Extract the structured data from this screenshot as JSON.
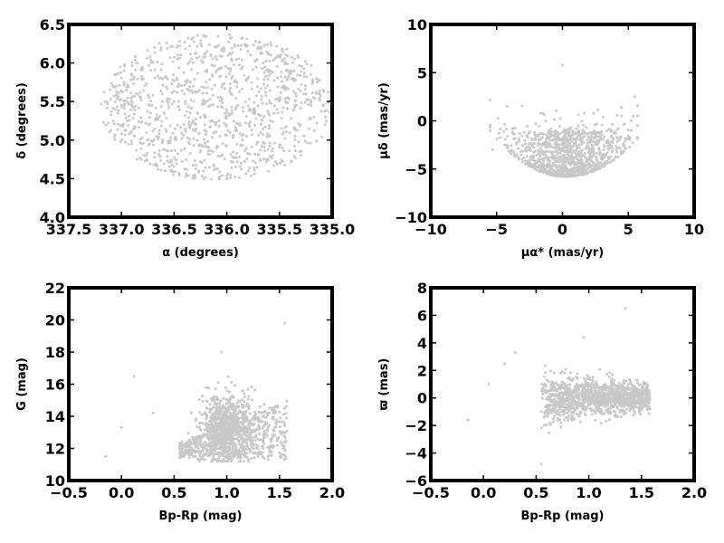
{
  "chart_data": [
    {
      "type": "scatter",
      "id": "sky",
      "xlabel": "α (degrees)",
      "ylabel": "δ (degrees)",
      "xlim": [
        337.5,
        335.0
      ],
      "ylim": [
        4.0,
        6.5
      ],
      "xticks": [
        "337.5",
        "337.0",
        "336.5",
        "336.0",
        "335.5",
        "335.0"
      ],
      "yticks": [
        "4.0",
        "4.5",
        "5.0",
        "5.5",
        "6.0",
        "6.5"
      ],
      "color": "#c8c8c8",
      "distribution": {
        "kind": "ellipse",
        "cx": 336.1,
        "cy": 5.43,
        "rx": 1.1,
        "ry": 0.95,
        "n": 1100
      },
      "series": [
        {
          "points": [
            [
              336.9,
              4.95
            ],
            [
              335.3,
              5.2
            ],
            [
              336.2,
              6.35
            ],
            [
              336.0,
              4.5
            ],
            [
              335.6,
              5.9
            ]
          ]
        }
      ]
    },
    {
      "type": "scatter",
      "id": "pm",
      "xlabel": "μα* (mas/yr)",
      "ylabel": "μδ (mas/yr)",
      "xlim": [
        -10,
        10
      ],
      "ylim": [
        -10,
        10
      ],
      "xticks": [
        "−10",
        "−5",
        "0",
        "5",
        "10"
      ],
      "yticks": [
        "−10",
        "−5",
        "0",
        "5",
        "10"
      ],
      "color": "#c8c8c8",
      "distribution": {
        "kind": "bowl",
        "cx": 0.3,
        "cy": -3.0,
        "rx": 5.0,
        "ytop": 3.5,
        "ybottom": -5.8,
        "n": 1100
      },
      "series": [
        {
          "points": [
            [
              0,
              5.8
            ],
            [
              -4.2,
              1.5
            ],
            [
              5.5,
              2.5
            ],
            [
              -5.3,
              -3.0
            ],
            [
              5.2,
              -1.0
            ]
          ]
        }
      ]
    },
    {
      "type": "scatter",
      "id": "cmd",
      "xlabel": "Bp-Rp (mag)",
      "ylabel": "G (mag)",
      "xlim": [
        -0.5,
        2.0
      ],
      "ylim": [
        22,
        10
      ],
      "xticks": [
        "−0.5",
        "0.0",
        "0.5",
        "1.0",
        "1.5",
        "2.0"
      ],
      "yticks": [
        "10",
        "12",
        "14",
        "16",
        "18",
        "20",
        "22"
      ],
      "color": "#c8c8c8",
      "distribution": {
        "kind": "cmd",
        "n": 1300
      },
      "series": [
        {
          "points": [
            [
              -0.15,
              20.5
            ],
            [
              0.12,
              15.5
            ],
            [
              0.0,
              18.7
            ],
            [
              1.55,
              12.2
            ],
            [
              0.95,
              14.0
            ],
            [
              0.3,
              17.8
            ]
          ]
        }
      ]
    },
    {
      "type": "scatter",
      "id": "parallax",
      "xlabel": "Bp-Rp (mag)",
      "ylabel": "ϖ (mas)",
      "xlim": [
        -0.5,
        2.0
      ],
      "ylim": [
        -6,
        8
      ],
      "xticks": [
        "−0.5",
        "0.0",
        "0.5",
        "1.0",
        "1.5",
        "2.0"
      ],
      "yticks": [
        "−6",
        "−4",
        "−2",
        "0",
        "2",
        "4",
        "6",
        "8"
      ],
      "color": "#c8c8c8",
      "distribution": {
        "kind": "band",
        "n": 1300
      },
      "series": [
        {
          "points": [
            [
              -0.15,
              -1.6
            ],
            [
              0.05,
              1.0
            ],
            [
              0.3,
              3.3
            ],
            [
              1.35,
              6.5
            ],
            [
              0.55,
              -4.8
            ],
            [
              0.95,
              4.4
            ],
            [
              0.2,
              2.5
            ]
          ]
        }
      ]
    }
  ]
}
